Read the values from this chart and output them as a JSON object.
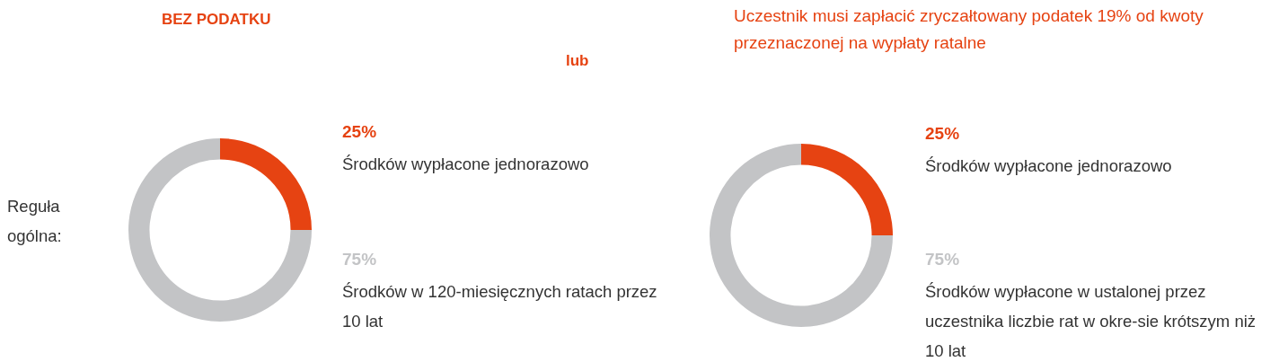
{
  "chart_data": [
    {
      "type": "donut",
      "title": "BEZ PODATKU",
      "categories": [
        "Środków wypłacone jednorazowo",
        "Środków w 120-miesięcznych ratach przez 10 lat"
      ],
      "values": [
        25,
        75
      ],
      "value_labels": [
        "25%",
        "75%"
      ],
      "colors": [
        "#e64312",
        "#c3c4c6"
      ],
      "annotations": [
        "Reguła ogólna:"
      ]
    },
    {
      "type": "donut",
      "title": "Uczestnik musi zapłacić zryczałtowany podatek 19% od kwoty przeznaczonej na wypłaty ratalne",
      "categories": [
        "Środków wypłacone jednorazowo",
        "Środków wypłacone w ustalonej przez uczestnika liczbie rat w okre-sie krótszym niż 10 lat"
      ],
      "values": [
        25,
        75
      ],
      "value_labels": [
        "25%",
        "75%"
      ],
      "colors": [
        "#e64312",
        "#c3c4c6"
      ],
      "annotations": [
        "lub"
      ]
    }
  ]
}
